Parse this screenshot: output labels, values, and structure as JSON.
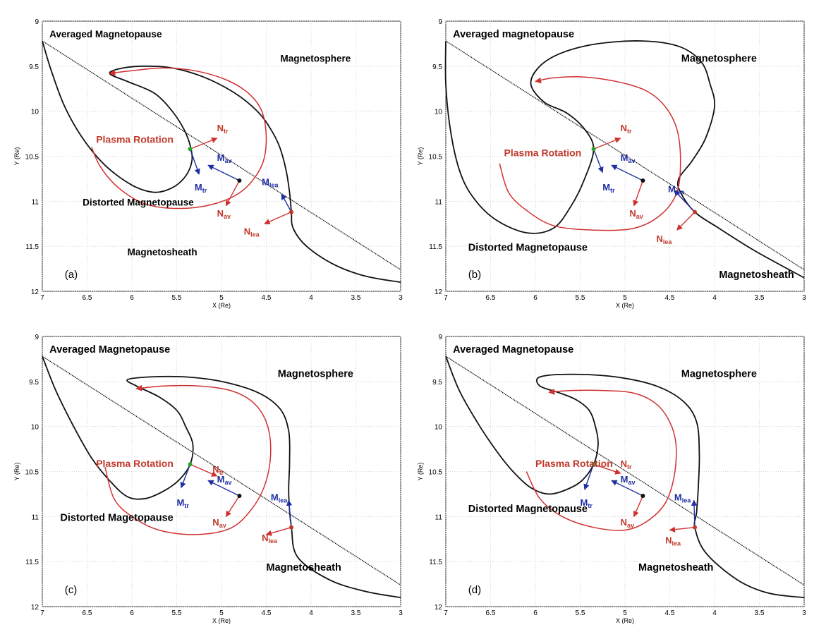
{
  "axes": {
    "xlabel": "X (Re)",
    "ylabel": "Y (Re)",
    "xticks": [
      "7",
      "6.5",
      "6",
      "5.5",
      "5",
      "4.5",
      "4",
      "3.5",
      "3"
    ],
    "yticks": [
      "9",
      "9.5",
      "10",
      "10.5",
      "11",
      "11.5",
      "12"
    ],
    "xlim": [
      7,
      3
    ],
    "ylim": [
      9,
      12
    ]
  },
  "colors": {
    "boundary": "#111111",
    "rotation": "#d03030",
    "vector_red": "#d03030",
    "vector_blue": "#1f2fa3",
    "point_green": "#2ca02c",
    "point_black": "#111111",
    "point_red": "#c0392b"
  },
  "points": {
    "trailing": [
      5.35,
      10.42
    ],
    "average": [
      4.8,
      10.77
    ],
    "leading": [
      4.22,
      11.12
    ]
  },
  "panels": [
    {
      "letter": "(a)",
      "averaged_label": "Averaged Magnetopause",
      "magnetosphere_label": "Magnetosphere",
      "distorted_label": "Distorted Magnetopause",
      "magnetosheath_label": "Magnetosheath",
      "rotation_label": "Plasma Rotation",
      "vectors": {
        "N_tr": "tr",
        "M_tr": "tr",
        "M_av": "av",
        "N_av": "av",
        "M_lea": "lea",
        "N_lea": "lea"
      }
    },
    {
      "letter": "(b)",
      "averaged_label": "Averaged magnetopause",
      "magnetosphere_label": "Magnetosphere",
      "distorted_label": "Distorted Magnetopause",
      "magnetosheath_label": "Magnetosheath",
      "rotation_label": "Plasma Rotation",
      "vectors": {
        "N_tr": "tr",
        "M_tr": "tr",
        "M_av": "av",
        "N_av": "av",
        "M_lea": "lea",
        "N_lea": "lea"
      }
    },
    {
      "letter": "(c)",
      "averaged_label": "Averaged Magnetopause",
      "magnetosphere_label": "Magnetosphere",
      "distorted_label": "Distorted Magetopause",
      "magnetosheath_label": "Magnetosheath",
      "rotation_label": "Plasma Rotation",
      "vectors": {
        "N_tr": "tr",
        "M_tr": "tr",
        "M_av": "av",
        "N_av": "av",
        "M_lea": "lea",
        "N_lea": "lea"
      }
    },
    {
      "letter": "(d)",
      "averaged_label": "Averaged Magnetopause",
      "magnetosphere_label": "Magnetosphere",
      "distorted_label": "Distorted Magnetopause",
      "magnetosheath_label": "Magnetosheath",
      "rotation_label": "Plasma Rotation",
      "vectors": {
        "N_tr": "tr",
        "M_tr": "tr",
        "M_av": "av",
        "N_av": "av",
        "M_lea": "lea",
        "N_lea": "lea"
      }
    }
  ],
  "vector_letters": {
    "N": "N",
    "M": "M"
  }
}
